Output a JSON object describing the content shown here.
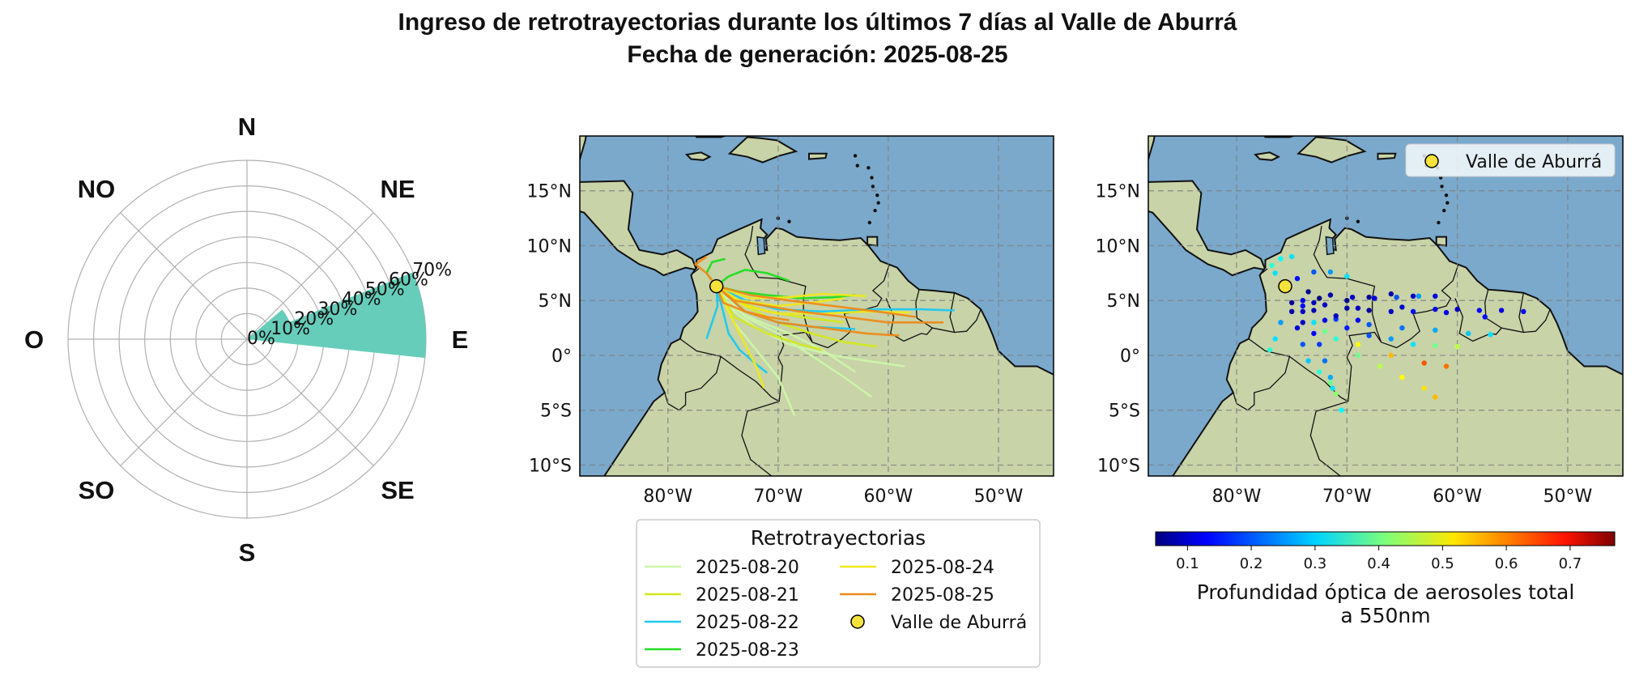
{
  "title_lines": [
    "Ingreso de retrotrayectorias durante los últimos 7 días al Valle de Aburrá",
    "Fecha de generación: 2025-08-25"
  ],
  "colors": {
    "rose_fill": "#66cdba",
    "grid": "#b0b0b0",
    "ocean": "#7aa9cc",
    "land": "#c8d3a8",
    "site_marker": "#f5e23a"
  },
  "chart_data": [
    {
      "type": "polar-bar",
      "name": "wind-rose",
      "directions": [
        "N",
        "NE",
        "E",
        "SE",
        "S",
        "SO",
        "O",
        "NO"
      ],
      "radial_ticks": [
        "0%",
        "10%",
        "20%",
        "30%",
        "40%",
        "50%",
        "60%",
        "70%"
      ],
      "rmax": 70,
      "bars": [
        {
          "direction": "E",
          "center_deg": 82,
          "width_deg": 28,
          "value": 70
        },
        {
          "direction": "NE",
          "center_deg": 60,
          "width_deg": 20,
          "value": 18
        }
      ]
    },
    {
      "type": "line",
      "name": "trajectory-map",
      "xlim": [
        -88,
        -45
      ],
      "ylim": [
        -11,
        20
      ],
      "xticks": [
        {
          "v": -80,
          "l": "80°W"
        },
        {
          "v": -70,
          "l": "70°W"
        },
        {
          "v": -60,
          "l": "60°W"
        },
        {
          "v": -50,
          "l": "50°W"
        }
      ],
      "yticks": [
        {
          "v": 15,
          "l": "15°N"
        },
        {
          "v": 10,
          "l": "10°N"
        },
        {
          "v": 5,
          "l": "5°N"
        },
        {
          "v": 0,
          "l": "0°"
        },
        {
          "v": -5,
          "l": "5°S"
        },
        {
          "v": -10,
          "l": "10°S"
        }
      ],
      "site": {
        "name": "Valle de Aburrá",
        "lon": -75.6,
        "lat": 6.3
      },
      "legend_title": "Retrotrayectorias",
      "series": [
        {
          "name": "2025-08-20",
          "color": "#ccf5a8",
          "lines": [
            [
              [
                -75.6,
                6.3
              ],
              [
                -74,
                4
              ],
              [
                -72,
                2.5
              ],
              [
                -69,
                1
              ],
              [
                -65,
                0
              ],
              [
                -62,
                -0.5
              ],
              [
                -58.5,
                -1
              ]
            ],
            [
              [
                -75.6,
                6.3
              ],
              [
                -74,
                3
              ],
              [
                -72,
                0.5
              ],
              [
                -70,
                -2
              ],
              [
                -68.5,
                -5.5
              ]
            ],
            [
              [
                -75.6,
                6.3
              ],
              [
                -73,
                3.5
              ],
              [
                -70,
                2
              ],
              [
                -67,
                0
              ],
              [
                -64,
                -2
              ],
              [
                -61.5,
                -3.8
              ]
            ],
            [
              [
                -75.6,
                6.3
              ],
              [
                -74.5,
                4.5
              ],
              [
                -72,
                3.2
              ],
              [
                -69,
                2
              ],
              [
                -66,
                0.5
              ],
              [
                -63,
                -1.5
              ]
            ]
          ]
        },
        {
          "name": "2025-08-21",
          "color": "#d4e81e",
          "lines": [
            [
              [
                -75.6,
                6.3
              ],
              [
                -73,
                4.5
              ],
              [
                -70,
                3
              ],
              [
                -67,
                2
              ],
              [
                -64,
                1.2
              ],
              [
                -61,
                0.8
              ]
            ],
            [
              [
                -75.6,
                6.3
              ],
              [
                -74,
                3.5
              ],
              [
                -71,
                2
              ],
              [
                -68,
                1
              ],
              [
                -66,
                0.5
              ]
            ],
            [
              [
                -75.6,
                6.3
              ],
              [
                -74,
                5
              ],
              [
                -71,
                4
              ],
              [
                -68,
                3.5
              ],
              [
                -64,
                3
              ]
            ]
          ]
        },
        {
          "name": "2025-08-22",
          "color": "#1ec8f0",
          "lines": [
            [
              [
                -75.6,
                6.3
              ],
              [
                -73,
                5
              ],
              [
                -70,
                4.2
              ],
              [
                -66,
                4
              ],
              [
                -61,
                4.2
              ],
              [
                -57,
                4.2
              ],
              [
                -54,
                4.1
              ]
            ],
            [
              [
                -75.6,
                6.3
              ],
              [
                -75,
                4
              ],
              [
                -74.5,
                2
              ],
              [
                -73.5,
                0.5
              ],
              [
                -72,
                -0.8
              ],
              [
                -71,
                -1.6
              ]
            ],
            [
              [
                -75.6,
                6.3
              ],
              [
                -75.5,
                4.5
              ],
              [
                -76,
                3
              ],
              [
                -76.5,
                1.5
              ]
            ],
            [
              [
                -75.6,
                6.3
              ],
              [
                -73,
                4
              ],
              [
                -70,
                3
              ],
              [
                -67,
                2.6
              ],
              [
                -63,
                2.4
              ]
            ]
          ]
        },
        {
          "name": "2025-08-23",
          "color": "#22dd22",
          "lines": [
            [
              [
                -75.6,
                6.3
              ],
              [
                -74.5,
                7.2
              ],
              [
                -73,
                7.8
              ],
              [
                -71,
                7.5
              ],
              [
                -69,
                6.8
              ]
            ],
            [
              [
                -75.6,
                6.3
              ],
              [
                -73.5,
                5.8
              ],
              [
                -71,
                5.5
              ],
              [
                -68,
                5.2
              ],
              [
                -65,
                5.3
              ],
              [
                -63,
                5.5
              ]
            ],
            [
              [
                -75.6,
                6.3
              ],
              [
                -76.5,
                7.5
              ],
              [
                -76,
                8.5
              ],
              [
                -74.8,
                8.8
              ]
            ]
          ]
        },
        {
          "name": "2025-08-24",
          "color": "#f0e81a",
          "lines": [
            [
              [
                -75.6,
                6.3
              ],
              [
                -73,
                4.5
              ],
              [
                -70,
                3.8
              ],
              [
                -66,
                3.8
              ],
              [
                -62,
                4
              ],
              [
                -58,
                3.9
              ]
            ],
            [
              [
                -75.6,
                6.3
              ],
              [
                -74,
                3
              ],
              [
                -73,
                1
              ],
              [
                -72,
                -1
              ],
              [
                -71.3,
                -3
              ]
            ],
            [
              [
                -75.6,
                6.3
              ],
              [
                -73.5,
                5
              ],
              [
                -70,
                4.5
              ],
              [
                -67,
                4.8
              ],
              [
                -64,
                5.2
              ]
            ],
            [
              [
                -75.6,
                6.3
              ],
              [
                -72.5,
                5.2
              ],
              [
                -69,
                5.3
              ],
              [
                -66,
                5.6
              ],
              [
                -62,
                5.4
              ]
            ]
          ]
        },
        {
          "name": "2025-08-25",
          "color": "#ee8a1a",
          "lines": [
            [
              [
                -75.6,
                6.3
              ],
              [
                -74,
                5
              ],
              [
                -71,
                4.5
              ],
              [
                -68,
                4
              ],
              [
                -64,
                3.5
              ],
              [
                -60,
                3
              ],
              [
                -57,
                3
              ],
              [
                -55,
                3
              ]
            ],
            [
              [
                -75.6,
                6.3
              ],
              [
                -73,
                4
              ],
              [
                -70,
                3
              ],
              [
                -66,
                2.5
              ],
              [
                -62,
                2
              ],
              [
                -59,
                1.8
              ]
            ],
            [
              [
                -75.6,
                6.3
              ],
              [
                -76.5,
                7.5
              ],
              [
                -77.5,
                8.3
              ],
              [
                -76.5,
                9
              ]
            ],
            [
              [
                -75.6,
                6.3
              ],
              [
                -72.5,
                5.5
              ],
              [
                -69,
                5
              ],
              [
                -65,
                4.5
              ],
              [
                -61,
                4
              ],
              [
                -57.5,
                3.5
              ]
            ],
            [
              [
                -75.6,
                6.3
              ],
              [
                -75,
                4.8
              ],
              [
                -73,
                4
              ],
              [
                -71,
                3.5
              ],
              [
                -69,
                3.2
              ]
            ]
          ]
        }
      ]
    },
    {
      "type": "scatter",
      "name": "aod-map",
      "xlim": [
        -88,
        -45
      ],
      "ylim": [
        -11,
        20
      ],
      "xticks": [
        {
          "v": -80,
          "l": "80°W"
        },
        {
          "v": -70,
          "l": "70°W"
        },
        {
          "v": -60,
          "l": "60°W"
        },
        {
          "v": -50,
          "l": "50°W"
        }
      ],
      "yticks": [
        {
          "v": 15,
          "l": "15°N"
        },
        {
          "v": 10,
          "l": "10°N"
        },
        {
          "v": 5,
          "l": "5°N"
        },
        {
          "v": 0,
          "l": "0°"
        },
        {
          "v": -5,
          "l": "5°S"
        },
        {
          "v": -10,
          "l": "10°S"
        }
      ],
      "site": {
        "name": "Valle de Aburrá",
        "lon": -75.6,
        "lat": 6.3
      },
      "legend_label": "Valle de Aburrá",
      "colorbar": {
        "label_lines": [
          "Profundidad óptica de aerosoles total",
          "a 550nm"
        ],
        "vmin": 0.05,
        "vmax": 0.77,
        "ticks": [
          0.1,
          0.2,
          0.3,
          0.4,
          0.5,
          0.6,
          0.7
        ],
        "tick_labels": [
          "0.1",
          "0.2",
          "0.3",
          "0.4",
          "0.5",
          "0.6",
          "0.7"
        ]
      },
      "points": [
        [
          -74,
          5,
          0.12
        ],
        [
          -72,
          4.6,
          0.1
        ],
        [
          -70,
          4.3,
          0.08
        ],
        [
          -68,
          4.1,
          0.07
        ],
        [
          -66,
          4,
          0.1
        ],
        [
          -64,
          4,
          0.15
        ],
        [
          -62,
          4.2,
          0.12
        ],
        [
          -60,
          4.2,
          0.1
        ],
        [
          -58,
          4.1,
          0.14
        ],
        [
          -56,
          4.1,
          0.12
        ],
        [
          -54,
          4,
          0.15
        ],
        [
          -73.5,
          5.8,
          0.06
        ],
        [
          -71.5,
          5.5,
          0.08
        ],
        [
          -69.5,
          5.3,
          0.1
        ],
        [
          -67.5,
          5.2,
          0.12
        ],
        [
          -65.5,
          5.3,
          0.2
        ],
        [
          -63.5,
          5.4,
          0.25
        ],
        [
          -74.5,
          7,
          0.15
        ],
        [
          -73,
          7.6,
          0.2
        ],
        [
          -71.5,
          7.6,
          0.25
        ],
        [
          -70,
          7.2,
          0.3
        ],
        [
          -76.5,
          7.5,
          0.3
        ],
        [
          -76.8,
          8.2,
          0.35
        ],
        [
          -76,
          8.8,
          0.32
        ],
        [
          -75,
          9,
          0.3
        ],
        [
          -74,
          4,
          0.1
        ],
        [
          -72,
          3.2,
          0.12
        ],
        [
          -70,
          2.5,
          0.16
        ],
        [
          -68,
          1.8,
          0.2
        ],
        [
          -66,
          1.5,
          0.25
        ],
        [
          -64,
          1,
          0.3
        ],
        [
          -62,
          0.9,
          0.4
        ],
        [
          -60,
          0.8,
          0.45
        ],
        [
          -75,
          4,
          0.08
        ],
        [
          -74.5,
          2.5,
          0.12
        ],
        [
          -74,
          1,
          0.2
        ],
        [
          -73.5,
          -0.5,
          0.28
        ],
        [
          -72.5,
          -1.5,
          0.35
        ],
        [
          -71.5,
          -2.5,
          0.4
        ],
        [
          -71,
          -3.5,
          0.42
        ],
        [
          -73,
          3,
          0.3
        ],
        [
          -71,
          1.5,
          0.35
        ],
        [
          -69,
          0,
          0.4
        ],
        [
          -67,
          -1,
          0.45
        ],
        [
          -65,
          -2,
          0.5
        ],
        [
          -63,
          -3,
          0.52
        ],
        [
          -62,
          -3.8,
          0.55
        ],
        [
          -72,
          2.2,
          0.4
        ],
        [
          -69,
          1,
          0.5
        ],
        [
          -66,
          0,
          0.55
        ],
        [
          -63,
          -0.7,
          0.62
        ],
        [
          -61,
          -1,
          0.6
        ],
        [
          -74,
          4.5,
          0.15
        ],
        [
          -71,
          3.3,
          0.18
        ],
        [
          -68,
          2.8,
          0.2
        ],
        [
          -65,
          2.5,
          0.22
        ],
        [
          -62,
          2.3,
          0.26
        ],
        [
          -59,
          2,
          0.28
        ],
        [
          -57,
          1.9,
          0.3
        ],
        [
          -76,
          3,
          0.25
        ],
        [
          -76.5,
          1.5,
          0.3
        ],
        [
          -77,
          0.5,
          0.35
        ],
        [
          -74,
          3,
          0.1
        ],
        [
          -73,
          2,
          0.14
        ],
        [
          -72.5,
          1,
          0.18
        ],
        [
          -72,
          -0.5,
          0.22
        ],
        [
          -71.5,
          -2,
          0.26
        ],
        [
          -71.3,
          -3,
          0.3
        ],
        [
          -70.5,
          -5,
          0.32
        ],
        [
          -72.5,
          5.2,
          0.05
        ],
        [
          -70,
          5,
          0.06
        ],
        [
          -68,
          5.3,
          0.07
        ],
        [
          -66,
          5.6,
          0.08
        ],
        [
          -64,
          5.4,
          0.1
        ],
        [
          -62,
          5.4,
          0.12
        ],
        [
          -73,
          4.8,
          0.09
        ],
        [
          -69,
          4.3,
          0.1
        ],
        [
          -65,
          4.4,
          0.11
        ],
        [
          -61,
          3.9,
          0.13
        ],
        [
          -57.5,
          3.5,
          0.15
        ],
        [
          -75,
          4.8,
          0.07
        ],
        [
          -73,
          4.1,
          0.09
        ],
        [
          -71,
          3.6,
          0.1
        ],
        [
          -69,
          3.2,
          0.13
        ]
      ]
    }
  ]
}
